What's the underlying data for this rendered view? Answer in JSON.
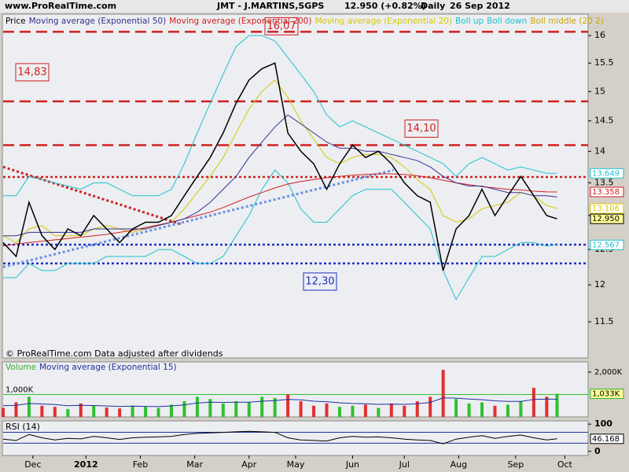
{
  "chart_data": [
    {
      "type": "line",
      "source": "www.ProRealTime.com",
      "title": "JMT - J.MARTINS,SGPS",
      "subtitle": "12.950 (+0.82%)",
      "period": "Daily",
      "date": "26 Sep 2012",
      "footer": "© ProRealTime.com  Data adjusted after dividends",
      "legend_extra": "Boll middle (20 2)",
      "log": true,
      "xlim": [
        0,
        226
      ],
      "ylim": [
        11.03,
        16.4
      ],
      "yticks": [
        11.5,
        12,
        12.5,
        13,
        13.5,
        14,
        14.5,
        15,
        15.5,
        16
      ],
      "x": [
        0,
        5,
        10,
        15,
        20,
        25,
        30,
        35,
        40,
        45,
        50,
        55,
        60,
        65,
        70,
        75,
        80,
        85,
        90,
        95,
        100,
        105,
        110,
        115,
        120,
        125,
        130,
        135,
        140,
        145,
        150,
        155,
        160,
        165,
        170,
        175,
        180,
        185,
        190,
        195,
        200,
        205,
        210,
        214
      ],
      "series": [
        {
          "name": "Price",
          "color": "#000000",
          "last_label": "12.950",
          "values": [
            12.6,
            12.4,
            13.2,
            12.7,
            12.5,
            12.8,
            12.7,
            13.0,
            12.8,
            12.6,
            12.8,
            12.9,
            12.9,
            13.0,
            13.3,
            13.6,
            13.9,
            14.3,
            14.8,
            15.2,
            15.4,
            15.5,
            14.3,
            14.0,
            13.8,
            13.4,
            13.8,
            14.1,
            13.9,
            14.0,
            13.8,
            13.5,
            13.3,
            13.2,
            12.2,
            12.8,
            13.0,
            13.4,
            13.0,
            13.3,
            13.6,
            13.3,
            13.0,
            12.95
          ]
        },
        {
          "name": "Moving average (Exponential 50)",
          "color": "#3a2f8f",
          "values": [
            12.7,
            12.7,
            12.75,
            12.75,
            12.75,
            12.75,
            12.75,
            12.8,
            12.8,
            12.8,
            12.8,
            12.8,
            12.85,
            12.9,
            12.95,
            13.05,
            13.2,
            13.4,
            13.6,
            13.9,
            14.15,
            14.4,
            14.6,
            14.45,
            14.3,
            14.15,
            14.05,
            14.05,
            14.0,
            14.0,
            13.95,
            13.9,
            13.85,
            13.75,
            13.6,
            13.5,
            13.45,
            13.45,
            13.4,
            13.35,
            13.35,
            13.3,
            13.3,
            13.28
          ]
        },
        {
          "name": "Moving average (Exponential 200)",
          "color": "#d02020",
          "last_label": "13.358",
          "values": [
            12.55,
            12.58,
            12.6,
            12.62,
            12.64,
            12.66,
            12.68,
            12.7,
            12.72,
            12.75,
            12.78,
            12.82,
            12.86,
            12.9,
            12.95,
            13.0,
            13.05,
            13.12,
            13.2,
            13.28,
            13.35,
            13.42,
            13.48,
            13.52,
            13.55,
            13.58,
            13.6,
            13.62,
            13.63,
            13.64,
            13.64,
            13.63,
            13.61,
            13.58,
            13.54,
            13.5,
            13.47,
            13.44,
            13.42,
            13.4,
            13.39,
            13.37,
            13.36,
            13.358
          ]
        },
        {
          "name": "Moving average (Exponential 20)",
          "color": "#d8c800",
          "last_label": "13.106",
          "values": [
            12.7,
            12.6,
            12.8,
            12.85,
            12.7,
            12.7,
            12.7,
            12.8,
            12.85,
            12.8,
            12.75,
            12.8,
            12.85,
            12.9,
            13.1,
            13.35,
            13.6,
            13.9,
            14.3,
            14.7,
            15.0,
            15.2,
            14.9,
            14.5,
            14.2,
            13.9,
            13.8,
            13.9,
            13.95,
            13.95,
            13.9,
            13.75,
            13.55,
            13.4,
            13.0,
            12.9,
            12.95,
            13.1,
            13.15,
            13.2,
            13.35,
            13.3,
            13.15,
            13.106
          ]
        },
        {
          "name": "Boll up",
          "color": "#20c0d0",
          "last_label": "13.649",
          "values": [
            13.3,
            13.3,
            13.6,
            13.55,
            13.5,
            13.45,
            13.4,
            13.5,
            13.5,
            13.4,
            13.3,
            13.3,
            13.3,
            13.4,
            13.8,
            14.3,
            14.8,
            15.3,
            15.8,
            16.0,
            16.0,
            15.9,
            15.6,
            15.3,
            15.0,
            14.6,
            14.4,
            14.5,
            14.4,
            14.3,
            14.2,
            14.1,
            14.0,
            13.9,
            13.8,
            13.6,
            13.8,
            13.9,
            13.8,
            13.7,
            13.75,
            13.7,
            13.65,
            13.649
          ]
        },
        {
          "name": "Boll down",
          "color": "#20c0d0",
          "last_label": "12.567",
          "values": [
            12.1,
            12.1,
            12.3,
            12.2,
            12.2,
            12.3,
            12.3,
            12.3,
            12.4,
            12.4,
            12.4,
            12.4,
            12.5,
            12.5,
            12.4,
            12.3,
            12.3,
            12.4,
            12.7,
            13.0,
            13.4,
            13.7,
            13.5,
            13.1,
            12.9,
            12.9,
            13.1,
            13.3,
            13.4,
            13.4,
            13.4,
            13.2,
            13.0,
            12.8,
            12.2,
            11.8,
            12.1,
            12.4,
            12.4,
            12.5,
            12.6,
            12.6,
            12.55,
            12.567
          ]
        }
      ],
      "levels": [
        {
          "value": 16.07,
          "label": "16,07",
          "color": "#d02020",
          "style": "dashed"
        },
        {
          "value": 14.83,
          "label": "14,83",
          "color": "#d02020",
          "style": "dashed"
        },
        {
          "value": 14.1,
          "label": "14,10",
          "color": "#d02020",
          "style": "dashed"
        },
        {
          "value": 13.59,
          "color": "#d02020",
          "style": "dotted"
        },
        {
          "value": 12.57,
          "color": "#2030c0",
          "style": "dotted"
        },
        {
          "value": 12.3,
          "label": "12,30",
          "color": "#2030c0",
          "style": "dotted"
        }
      ],
      "trendlines": [
        {
          "color": "#d02020",
          "x": [
            0,
            68.7
          ],
          "y": [
            13.75,
            12.87
          ]
        },
        {
          "color": "#6a90e8",
          "x": [
            0,
            150.8
          ],
          "y": [
            12.25,
            13.7
          ]
        }
      ]
    },
    {
      "type": "bar",
      "xlim": [
        0,
        226
      ],
      "ylim": [
        0,
        2456
      ],
      "yticks": [
        {
          "value": 2000,
          "label": "2,000K"
        }
      ],
      "left_ticks": [
        {
          "value": 1000,
          "label": "1,000K"
        }
      ],
      "x": [
        0,
        5,
        10,
        15,
        20,
        25,
        30,
        35,
        40,
        45,
        50,
        55,
        60,
        65,
        70,
        75,
        80,
        85,
        90,
        95,
        100,
        105,
        110,
        115,
        120,
        125,
        130,
        135,
        140,
        145,
        150,
        155,
        160,
        165,
        170,
        175,
        180,
        185,
        190,
        195,
        200,
        205,
        210,
        214
      ],
      "series": [
        {
          "name": "Volume",
          "color": "#30b030",
          "last_label": "1,033K",
          "colors": [
            "#e03030",
            "#e03030",
            "#30c030",
            "#e03030",
            "#e03030",
            "#30c030",
            "#e03030",
            "#30c030",
            "#e03030",
            "#e03030",
            "#30c030",
            "#30c030",
            "#30c030",
            "#30c030",
            "#30c030",
            "#30c030",
            "#30c030",
            "#30c030",
            "#30c030",
            "#30c030",
            "#30c030",
            "#30c030",
            "#e03030",
            "#e03030",
            "#e03030",
            "#e03030",
            "#30c030",
            "#30c030",
            "#e03030",
            "#30c030",
            "#e03030",
            "#e03030",
            "#e03030",
            "#e03030",
            "#e03030",
            "#30c030",
            "#30c030",
            "#30c030",
            "#e03030",
            "#30c030",
            "#30c030",
            "#e03030",
            "#e03030",
            "#30c030"
          ],
          "values": [
            400,
            650,
            900,
            500,
            450,
            350,
            600,
            500,
            420,
            380,
            500,
            450,
            400,
            550,
            700,
            900,
            800,
            600,
            700,
            650,
            900,
            850,
            1000,
            700,
            500,
            600,
            450,
            500,
            550,
            400,
            600,
            500,
            700,
            900,
            2100,
            800,
            600,
            650,
            500,
            550,
            700,
            1300,
            900,
            1033
          ]
        },
        {
          "name": "Moving average (Exponential 15)",
          "color": "#2030a0",
          "line": true,
          "values": [
            500,
            520,
            600,
            580,
            550,
            500,
            520,
            510,
            490,
            470,
            480,
            470,
            460,
            490,
            540,
            620,
            660,
            650,
            660,
            660,
            700,
            730,
            780,
            760,
            700,
            680,
            630,
            600,
            590,
            560,
            570,
            560,
            590,
            650,
            850,
            840,
            800,
            770,
            720,
            690,
            690,
            780,
            800,
            790
          ]
        }
      ]
    },
    {
      "type": "line",
      "title": "RSI (14)",
      "xlim": [
        0,
        226
      ],
      "ylim": [
        -15,
        112
      ],
      "yticks": [
        0,
        100
      ],
      "bands": [
        30,
        70
      ],
      "xticks": [
        {
          "value": 11.5,
          "label": "Dec"
        },
        {
          "value": 32,
          "label": "2012"
        },
        {
          "value": 53,
          "label": "Feb"
        },
        {
          "value": 74,
          "label": "Mar"
        },
        {
          "value": 95,
          "label": "Apr"
        },
        {
          "value": 113,
          "label": "May"
        },
        {
          "value": 135,
          "label": "Jun"
        },
        {
          "value": 155,
          "label": "Jul"
        },
        {
          "value": 176,
          "label": "Aug"
        },
        {
          "value": 198,
          "label": "Sep"
        },
        {
          "value": 217,
          "label": "Oct"
        }
      ],
      "x": [
        0,
        5,
        10,
        15,
        20,
        25,
        30,
        35,
        40,
        45,
        50,
        55,
        60,
        65,
        70,
        75,
        80,
        85,
        90,
        95,
        100,
        105,
        110,
        115,
        120,
        125,
        130,
        135,
        140,
        145,
        150,
        155,
        160,
        165,
        170,
        175,
        180,
        185,
        190,
        195,
        200,
        205,
        210,
        214
      ],
      "series": [
        {
          "name": "RSI",
          "color": "#000000",
          "last_label": "46.168",
          "values": [
            45,
            40,
            62,
            50,
            42,
            48,
            46,
            55,
            50,
            44,
            50,
            52,
            53,
            55,
            62,
            66,
            68,
            70,
            72,
            74,
            72,
            70,
            50,
            42,
            40,
            38,
            50,
            55,
            52,
            53,
            50,
            45,
            42,
            40,
            28,
            45,
            52,
            58,
            48,
            55,
            60,
            50,
            42,
            46.168
          ]
        }
      ]
    }
  ]
}
